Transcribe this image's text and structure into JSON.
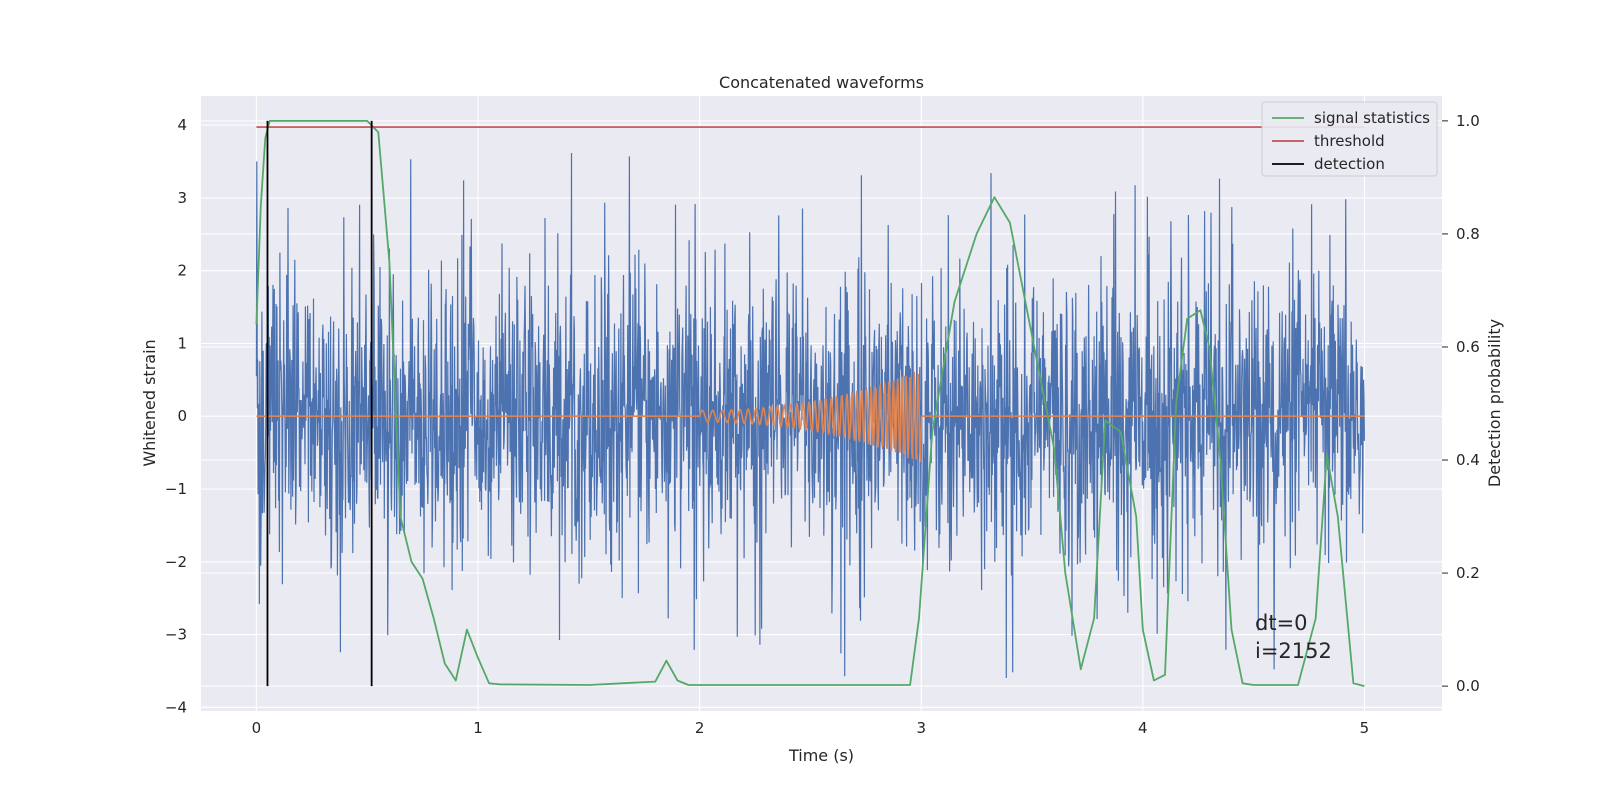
{
  "chart_data": {
    "type": "line",
    "title": "Concatenated waveforms",
    "xlabel": "Time (s)",
    "ylabel": "Whitened strain",
    "ylabel_right": "Detection probability",
    "xlim": [
      -0.25,
      5.35
    ],
    "ylim": [
      -4.05,
      4.4
    ],
    "ylim_right": [
      -0.044,
      1.044
    ],
    "xticks": [
      "0",
      "1",
      "2",
      "3",
      "4",
      "5"
    ],
    "yticks_left": [
      "4",
      "3",
      "2",
      "1",
      "0",
      "−1",
      "−2",
      "−3",
      "−4"
    ],
    "yticks_right": [
      "1.0",
      "0.8",
      "0.6",
      "0.4",
      "0.2",
      "0.0"
    ],
    "grid": true,
    "legend_placement": "top-right",
    "legend": [
      {
        "label": "signal statistics",
        "color": "#55a868"
      },
      {
        "label": "threshold",
        "color": "#c44e52"
      },
      {
        "label": "detection",
        "color": "#000000"
      }
    ],
    "series": [
      {
        "name": "",
        "axis": "left",
        "kind": "whitened strain noise",
        "color": "#4c72b0",
        "x_range": [
          0,
          5
        ],
        "approx_std": 0.95,
        "approx_min": -3.7,
        "approx_max": 4.05
      },
      {
        "name": "",
        "axis": "left",
        "kind": "injected chirp",
        "color": "#dd8452",
        "x_range": [
          0,
          5
        ],
        "chirp_start": 2.0,
        "chirp_end": 3.0,
        "peak_amplitude": 0.65
      },
      {
        "name": "signal statistics",
        "axis": "right",
        "color": "#55a868",
        "x": [
          0,
          0.02,
          0.04,
          0.06,
          0.1,
          0.2,
          0.3,
          0.45,
          0.5,
          0.55,
          0.6,
          0.65,
          0.7,
          0.75,
          0.8,
          0.85,
          0.9,
          0.95,
          1.0,
          1.05,
          1.1,
          1.5,
          1.8,
          1.85,
          1.9,
          1.95,
          2.0,
          2.5,
          2.95,
          2.99,
          3.05,
          3.15,
          3.25,
          3.33,
          3.4,
          3.5,
          3.6,
          3.65,
          3.72,
          3.78,
          3.83,
          3.9,
          3.97,
          4.0,
          4.05,
          4.1,
          4.15,
          4.2,
          4.26,
          4.3,
          4.35,
          4.4,
          4.45,
          4.5,
          4.7,
          4.78,
          4.83,
          4.88,
          4.95,
          5.0
        ],
        "values": [
          0.64,
          0.85,
          0.97,
          1.0,
          1.0,
          1.0,
          1.0,
          1.0,
          1.0,
          0.98,
          0.75,
          0.3,
          0.22,
          0.19,
          0.12,
          0.04,
          0.01,
          0.1,
          0.05,
          0.005,
          0.003,
          0.002,
          0.008,
          0.045,
          0.01,
          0.002,
          0.002,
          0.002,
          0.002,
          0.12,
          0.45,
          0.68,
          0.8,
          0.865,
          0.82,
          0.62,
          0.42,
          0.2,
          0.03,
          0.12,
          0.47,
          0.45,
          0.3,
          0.1,
          0.01,
          0.02,
          0.5,
          0.65,
          0.665,
          0.6,
          0.4,
          0.1,
          0.005,
          0.002,
          0.002,
          0.12,
          0.41,
          0.3,
          0.005,
          0.0
        ]
      },
      {
        "name": "threshold",
        "axis": "right",
        "color": "#c44e52",
        "x": [
          0,
          5
        ],
        "values": [
          0.989,
          0.989
        ]
      },
      {
        "name": "detection",
        "axis": "right",
        "color": "#000000",
        "vlines_x": [
          0.05,
          0.52
        ],
        "from": 0,
        "to": 1.0
      }
    ],
    "annotations": [
      "dt=0",
      "i=2152"
    ]
  }
}
